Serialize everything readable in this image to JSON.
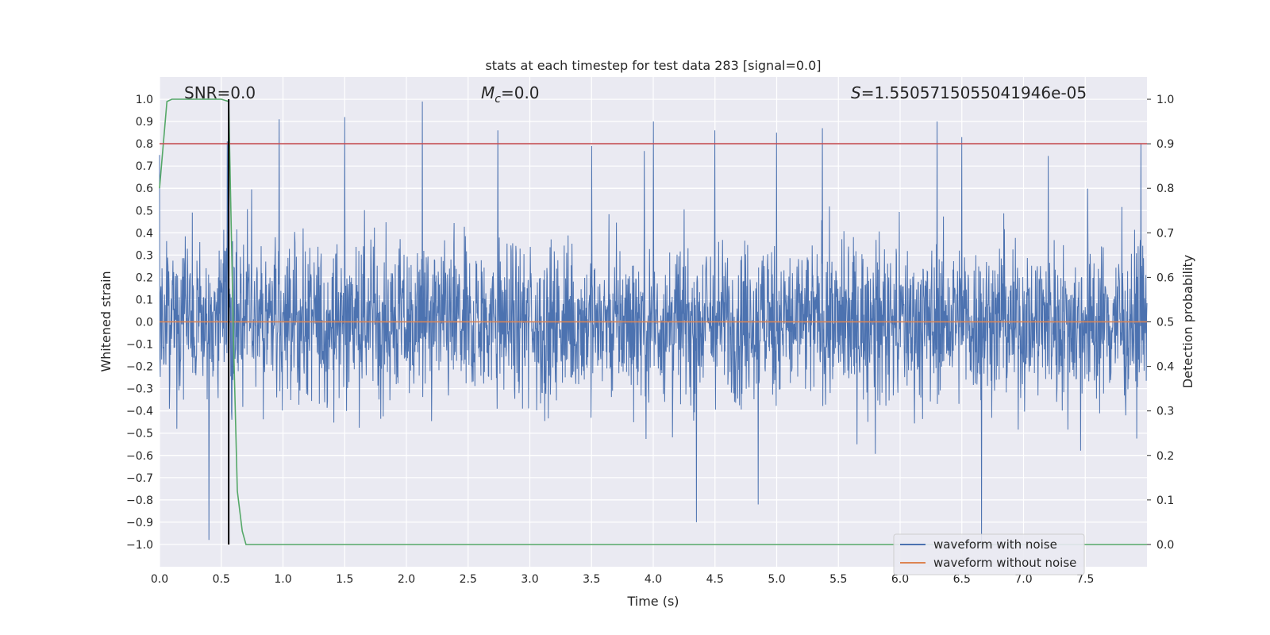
{
  "chart_data": {
    "type": "line",
    "title": "stats at each timestep for test data 283 [signal=0.0]",
    "xlabel": "Time (s)",
    "ylabel": "Whitened strain",
    "y2label": "Detection probability",
    "xlim": [
      0.0,
      8.0
    ],
    "ylim": [
      -1.1,
      1.1
    ],
    "y2lim": [
      -0.05,
      1.05
    ],
    "xticks": [
      0.0,
      0.5,
      1.0,
      1.5,
      2.0,
      2.5,
      3.0,
      3.5,
      4.0,
      4.5,
      5.0,
      5.5,
      6.0,
      6.5,
      7.0,
      7.5
    ],
    "xtick_labels": [
      "0.0",
      "0.5",
      "1.0",
      "1.5",
      "2.0",
      "2.5",
      "3.0",
      "3.5",
      "4.0",
      "4.5",
      "5.0",
      "5.5",
      "6.0",
      "6.5",
      "7.0",
      "7.5"
    ],
    "yticks": [
      1.0,
      0.9,
      0.8,
      0.7,
      0.6,
      0.5,
      0.4,
      0.3,
      0.2,
      0.1,
      0.0,
      -0.1,
      -0.2,
      -0.3,
      -0.4,
      -0.5,
      -0.6,
      -0.7,
      -0.8,
      -0.9,
      -1.0
    ],
    "ytick_labels": [
      "1.0",
      "0.9",
      "0.8",
      "0.7",
      "0.6",
      "0.5",
      "0.4",
      "0.3",
      "0.2",
      "0.1",
      "0.0",
      "−0.1",
      "−0.2",
      "−0.3",
      "−0.4",
      "−0.5",
      "−0.6",
      "−0.7",
      "−0.8",
      "−0.9",
      "−1.0"
    ],
    "y2ticks": [
      1.0,
      0.9,
      0.8,
      0.7,
      0.6,
      0.5,
      0.4,
      0.3,
      0.2,
      0.1,
      0.0
    ],
    "y2tick_labels": [
      "1.0",
      "0.9",
      "0.8",
      "0.7",
      "0.6",
      "0.5",
      "0.4",
      "0.3",
      "0.2",
      "0.1",
      "0.0"
    ],
    "grid": true,
    "annotations": {
      "snr": "SNR=0.0",
      "mc_symbol": "M",
      "mc_sub": "c",
      "mc_value": "=0.0",
      "s_symbol": "S",
      "s_value": "=1.5505715055041946e-05"
    },
    "series": [
      {
        "name": "waveform with noise",
        "color": "#4c72b0",
        "axis": "left",
        "description": "whitened noisy strain, samples roughly within [-0.5, 0.5] with peaks to about 1.0 and -1.0",
        "x": [
          0.0,
          0.4,
          0.55,
          0.97,
          1.5,
          2.13,
          2.74,
          3.5,
          4.0,
          4.35,
          4.5,
          4.85,
          5.0,
          5.37,
          6.3,
          6.5,
          6.66,
          7.95
        ],
        "peaks": [
          0.75,
          -0.98,
          0.81,
          0.91,
          0.92,
          0.99,
          0.86,
          0.79,
          0.9,
          -0.9,
          0.86,
          -0.82,
          0.85,
          0.87,
          0.9,
          0.83,
          -1.0,
          0.8
        ]
      },
      {
        "name": "waveform without noise",
        "color": "#dd8452",
        "axis": "left",
        "x": [
          0.0,
          8.0
        ],
        "y": [
          0.0,
          0.0
        ]
      },
      {
        "name": "detection probability",
        "color": "#55a868",
        "axis": "right",
        "x": [
          0.0,
          0.06,
          0.1,
          0.2,
          0.3,
          0.4,
          0.5,
          0.56,
          0.6,
          0.63,
          0.67,
          0.7,
          1.0,
          2.0,
          3.0,
          4.0,
          5.0,
          6.0,
          7.0,
          8.0
        ],
        "y": [
          0.8,
          0.995,
          1.0,
          1.0,
          1.0,
          1.0,
          1.0,
          0.995,
          0.45,
          0.12,
          0.03,
          0.0,
          0.0,
          0.0,
          0.0,
          0.0,
          0.0,
          0.0,
          0.0,
          0.0
        ]
      },
      {
        "name": "threshold",
        "color": "#c44e52",
        "axis": "right",
        "x": [
          0.0,
          8.0
        ],
        "y": [
          0.9,
          0.9
        ]
      },
      {
        "name": "detection time",
        "color": "#000000",
        "axis": "left",
        "x": [
          0.56,
          0.56
        ],
        "y": [
          -1.0,
          1.0
        ]
      }
    ],
    "legend": {
      "position": "lower-right",
      "entries": [
        {
          "label": "waveform with noise",
          "color": "#4c72b0"
        },
        {
          "label": "waveform without noise",
          "color": "#dd8452"
        }
      ]
    }
  }
}
